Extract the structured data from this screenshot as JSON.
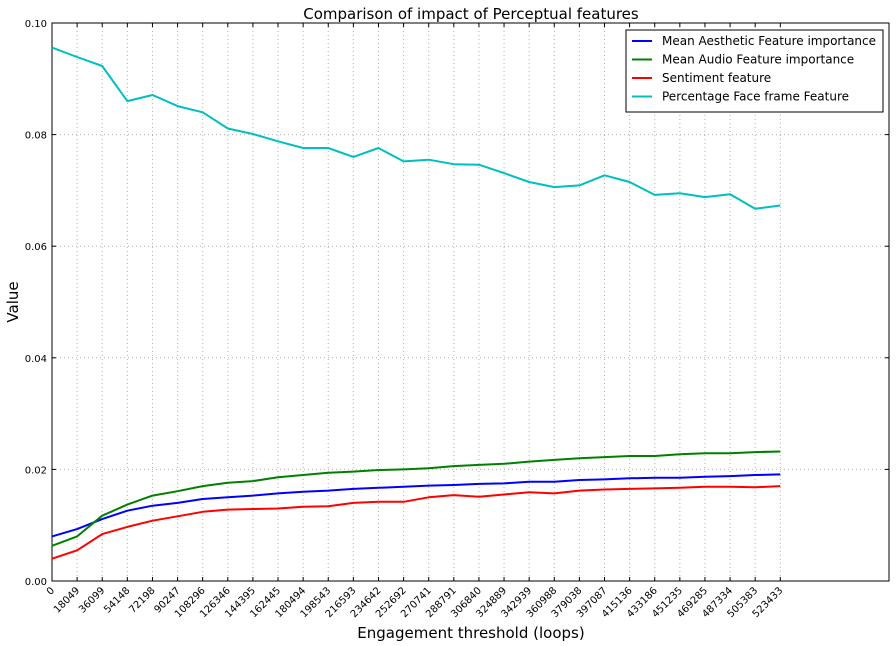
{
  "chart_data": {
    "type": "line",
    "title": "Comparison of impact of Perceptual features",
    "xlabel": "Engagement threshold (loops)",
    "ylabel": "Value",
    "x": [
      0,
      18049,
      36099,
      54148,
      72198,
      90247,
      108296,
      126346,
      144395,
      162445,
      180494,
      198543,
      216593,
      234642,
      252692,
      270741,
      288791,
      306840,
      324889,
      342939,
      360988,
      379038,
      397087,
      415136,
      433186,
      451235,
      469285,
      487334,
      505383,
      523433
    ],
    "x_tick_labels": [
      "0",
      "18049",
      "36099",
      "54148",
      "72198",
      "90247",
      "108296",
      "126346",
      "144395",
      "162445",
      "180494",
      "198543",
      "216593",
      "234642",
      "252692",
      "270741",
      "288791",
      "306840",
      "324889",
      "342939",
      "360988",
      "379038",
      "397087",
      "415136",
      "433186",
      "451235",
      "469285",
      "487334",
      "505383",
      "523433"
    ],
    "xlim": [
      0,
      601560
    ],
    "ylim": [
      0.0,
      0.1
    ],
    "y_ticks": [
      0.0,
      0.02,
      0.04,
      0.06,
      0.08,
      0.1
    ],
    "y_tick_labels": [
      "0.00",
      "0.02",
      "0.04",
      "0.06",
      "0.08",
      "0.10"
    ],
    "grid": true,
    "legend_position": "top-right",
    "series": [
      {
        "name": "Mean Aesthetic Feature importance",
        "color": "#0000ff",
        "values": [
          0.008,
          0.0093,
          0.0111,
          0.0126,
          0.0135,
          0.014,
          0.0147,
          0.015,
          0.0153,
          0.0157,
          0.016,
          0.0162,
          0.0165,
          0.0167,
          0.0169,
          0.0171,
          0.0172,
          0.0174,
          0.0175,
          0.0178,
          0.0178,
          0.0181,
          0.0182,
          0.0184,
          0.0185,
          0.0185,
          0.0187,
          0.0188,
          0.019,
          0.0191
        ]
      },
      {
        "name": "Mean Audio Feature importance",
        "color": "#008000",
        "values": [
          0.0063,
          0.008,
          0.0117,
          0.0137,
          0.0153,
          0.0161,
          0.017,
          0.0176,
          0.0179,
          0.0186,
          0.019,
          0.0194,
          0.0196,
          0.0199,
          0.02,
          0.0202,
          0.0206,
          0.0208,
          0.021,
          0.0214,
          0.0217,
          0.022,
          0.0222,
          0.0224,
          0.0224,
          0.0227,
          0.0229,
          0.0229,
          0.0231,
          0.0232
        ]
      },
      {
        "name": "Sentiment feature",
        "color": "#ff0000",
        "values": [
          0.004,
          0.0055,
          0.0084,
          0.0097,
          0.0108,
          0.0116,
          0.0124,
          0.0128,
          0.0129,
          0.013,
          0.0133,
          0.0134,
          0.014,
          0.0142,
          0.0142,
          0.015,
          0.0154,
          0.0151,
          0.0155,
          0.0159,
          0.0157,
          0.0162,
          0.0164,
          0.0165,
          0.0166,
          0.0167,
          0.0169,
          0.0169,
          0.0168,
          0.017
        ]
      },
      {
        "name": "Percentage Face frame Feature",
        "color": "#00bfbf",
        "values": [
          0.0956,
          0.0939,
          0.0923,
          0.086,
          0.0871,
          0.0851,
          0.084,
          0.0811,
          0.0801,
          0.0788,
          0.0776,
          0.0776,
          0.076,
          0.0776,
          0.0752,
          0.0755,
          0.0747,
          0.0746,
          0.0731,
          0.0715,
          0.0706,
          0.0709,
          0.0727,
          0.0715,
          0.0692,
          0.0695,
          0.0688,
          0.0693,
          0.0667,
          0.0673
        ]
      }
    ]
  }
}
